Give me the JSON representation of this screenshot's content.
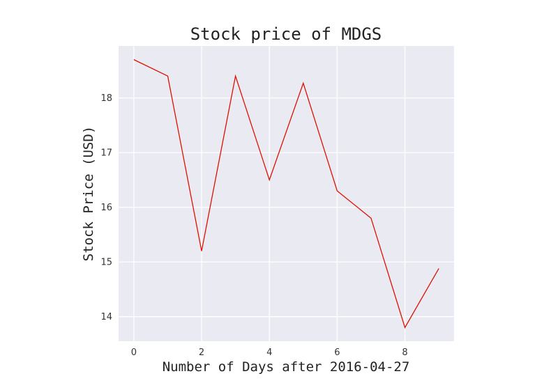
{
  "chart_data": {
    "type": "line",
    "title": "Stock price of MDGS",
    "xlabel": "Number of Days after 2016-04-27",
    "ylabel": "Stock Price (USD)",
    "x": [
      0,
      1,
      2,
      3,
      4,
      5,
      6,
      7,
      8,
      9
    ],
    "series": [
      {
        "values": [
          18.7,
          18.4,
          15.2,
          18.4,
          16.5,
          18.27,
          16.3,
          15.8,
          13.8,
          14.88
        ]
      }
    ],
    "xlim": [
      -0.45,
      9.45
    ],
    "ylim": [
      13.55,
      18.95
    ],
    "xticks": [
      0,
      2,
      4,
      6,
      8
    ],
    "yticks": [
      14,
      15,
      16,
      17,
      18
    ],
    "grid": true,
    "colors": {
      "line": "#dd1100",
      "plot_background": "#eaeaf2",
      "grid": "#ffffff"
    }
  }
}
